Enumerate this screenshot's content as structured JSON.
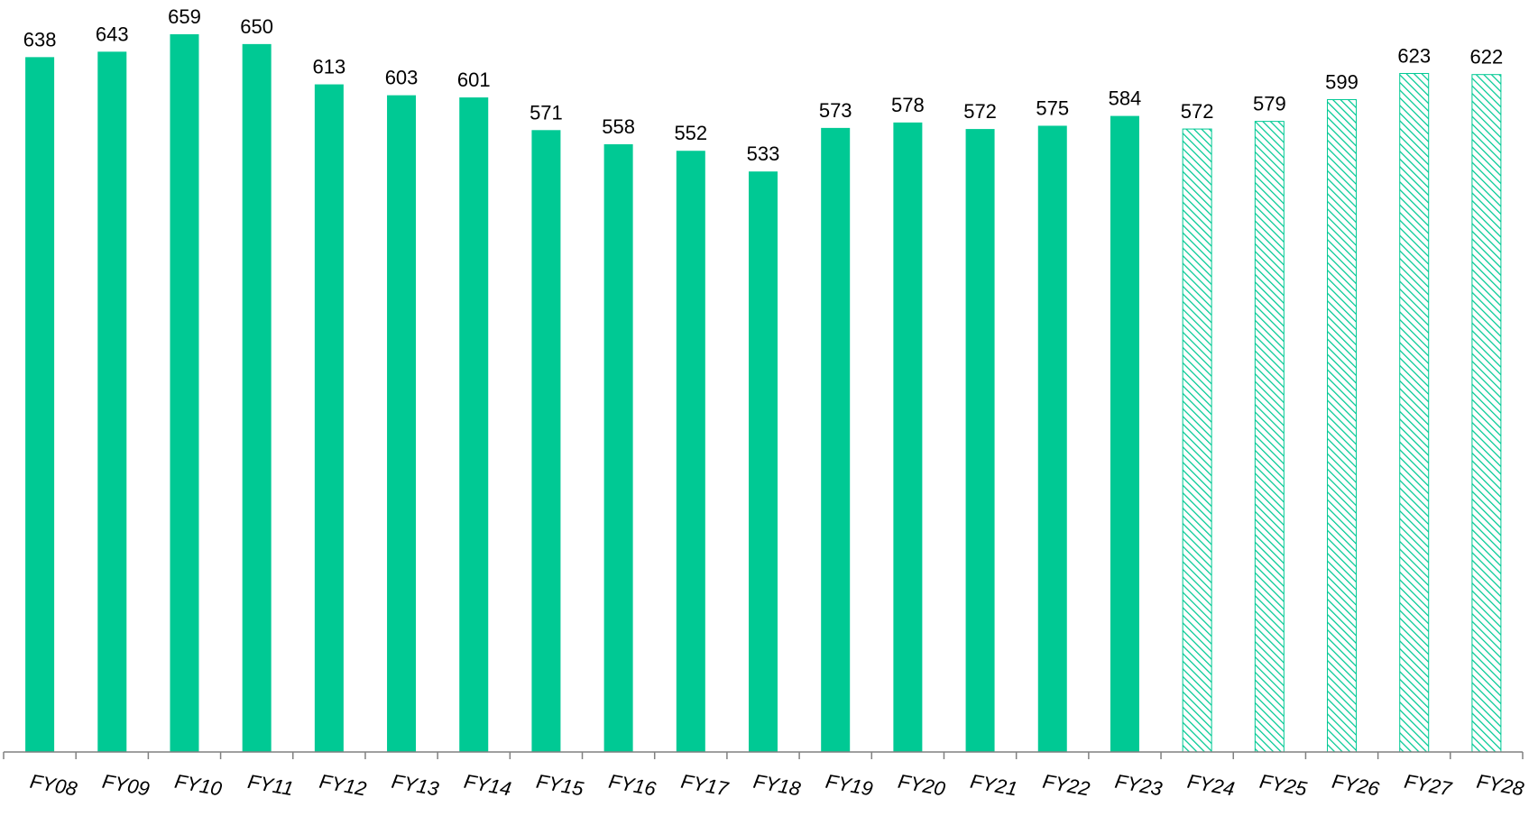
{
  "chart_data": {
    "type": "bar",
    "title": "",
    "xlabel": "",
    "ylabel": "",
    "categories": [
      "FY08",
      "FY09",
      "FY10",
      "FY11",
      "FY12",
      "FY13",
      "FY14",
      "FY15",
      "FY16",
      "FY17",
      "FY18",
      "FY19",
      "FY20",
      "FY21",
      "FY22",
      "FY23",
      "FY24",
      "FY25",
      "FY26",
      "FY27",
      "FY28"
    ],
    "values": [
      638,
      643,
      659,
      650,
      613,
      603,
      601,
      571,
      558,
      552,
      533,
      573,
      578,
      572,
      575,
      584,
      572,
      579,
      599,
      623,
      622
    ],
    "projected": [
      false,
      false,
      false,
      false,
      false,
      false,
      false,
      false,
      false,
      false,
      false,
      false,
      false,
      false,
      false,
      false,
      true,
      true,
      true,
      true,
      true
    ],
    "ylim": [
      0,
      680
    ],
    "grid": false,
    "legend": "none",
    "colors": {
      "actual": "#00C994",
      "projected_hatch": "#00C994",
      "axis": "#808080"
    }
  }
}
